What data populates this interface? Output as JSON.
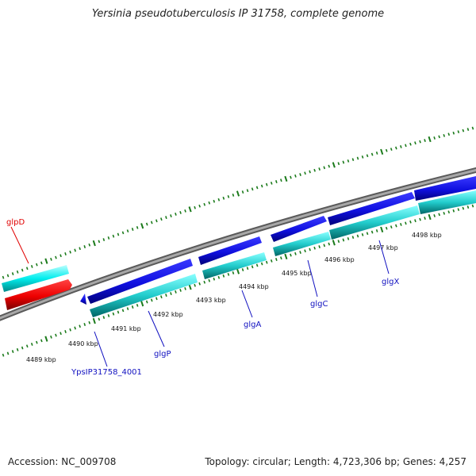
{
  "title": "Yersinia pseudotuberculosis IP 31758, complete genome",
  "accession": "Accession: NC_009708",
  "stats": "Topology: circular; Length: 4,723,306 bp; Genes: 4,257",
  "ticks": [
    {
      "label": "4489 kbp"
    },
    {
      "label": "4490 kbp"
    },
    {
      "label": "4491 kbp"
    },
    {
      "label": "4492 kbp"
    },
    {
      "label": "4493 kbp"
    },
    {
      "label": "4494 kbp"
    },
    {
      "label": "4495 kbp"
    },
    {
      "label": "4496 kbp"
    },
    {
      "label": "4497 kbp"
    },
    {
      "label": "4498 kbp"
    }
  ],
  "genes": [
    {
      "name": "glpD",
      "color": "#e00000"
    },
    {
      "name": "YpsIP31758_4001",
      "color": "#1010c0"
    },
    {
      "name": "glgP",
      "color": "#1010c0"
    },
    {
      "name": "glgA",
      "color": "#1010c0"
    },
    {
      "name": "glgC",
      "color": "#1010c0"
    },
    {
      "name": "glgX",
      "color": "#1010c0"
    }
  ],
  "colors": {
    "backbone": "#808080",
    "cds": "#1010e0",
    "cds_top": "#00e5ee",
    "feature": "#20c8c8",
    "reverse": "#e00000",
    "tick": "#1a7a1a"
  }
}
